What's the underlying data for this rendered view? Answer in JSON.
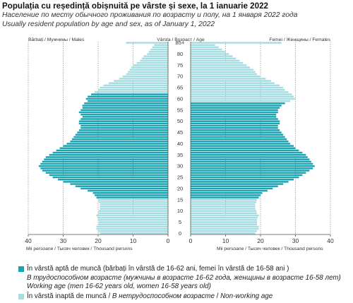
{
  "header": {
    "title": "Populația cu reședință obișnuită pe vârste și sexe, la 1 ianuarie 2022",
    "subtitle_ru": "Население по месту обычного проживания по возрасту и полу, на 1 января 2022 года",
    "subtitle_en": "Usually resident population by age and sex, as of January 1, 2022"
  },
  "colors": {
    "working": "#1ba3b1",
    "nonworking": "#a6dde2",
    "grid": "#777777"
  },
  "chart_data": {
    "type": "bar",
    "orientation": "horizontal-pyramid",
    "units_label": "Mii persoane / Тысяч человек / Thousand persons",
    "age_axis_label": "Vârsta / Возраст / Age",
    "left_panel_label": "Bărbați / Мужчины / Males",
    "right_panel_label": "Femei / Женщины / Females",
    "xlim": [
      0,
      40
    ],
    "x_ticks": [
      0,
      10,
      20,
      30,
      40
    ],
    "age_ticks": [
      "85+",
      "80",
      "75",
      "70",
      "65",
      "60",
      "55",
      "50",
      "45",
      "40",
      "35",
      "30",
      "25",
      "20",
      "15",
      "10",
      "5",
      "0"
    ],
    "grid": true,
    "ages": [
      0,
      1,
      2,
      3,
      4,
      5,
      6,
      7,
      8,
      9,
      10,
      11,
      12,
      13,
      14,
      15,
      16,
      17,
      18,
      19,
      20,
      21,
      22,
      23,
      24,
      25,
      26,
      27,
      28,
      29,
      30,
      31,
      32,
      33,
      34,
      35,
      36,
      37,
      38,
      39,
      40,
      41,
      42,
      43,
      44,
      45,
      46,
      47,
      48,
      49,
      50,
      51,
      52,
      53,
      54,
      55,
      56,
      57,
      58,
      59,
      60,
      61,
      62,
      63,
      64,
      65,
      66,
      67,
      68,
      69,
      70,
      71,
      72,
      73,
      74,
      75,
      76,
      77,
      78,
      79,
      80,
      81,
      82,
      83,
      84,
      85
    ],
    "males": [
      19.5,
      20,
      20.5,
      20.5,
      20,
      19.8,
      20,
      20.2,
      20.5,
      20,
      19.8,
      19.5,
      19.5,
      19.5,
      19.8,
      20,
      20.5,
      21,
      21.5,
      23,
      25,
      26.5,
      28,
      30,
      31.5,
      33,
      34,
      35,
      36,
      36.5,
      37,
      36.5,
      36,
      35.5,
      35,
      34,
      33,
      32,
      31,
      30,
      29,
      28,
      27.5,
      27,
      26.5,
      26,
      25.5,
      25,
      25,
      25.5,
      25.5,
      25,
      24.5,
      25,
      25.5,
      25,
      24.5,
      24.5,
      24,
      23,
      23.5,
      23,
      22,
      21,
      20,
      19.5,
      18.5,
      17,
      15.5,
      14,
      13,
      12,
      11.5,
      11,
      10.5,
      10,
      9,
      8,
      7.5,
      7,
      6,
      5.5,
      5,
      4.5,
      4,
      12
    ],
    "females": [
      18.5,
      19,
      19.5,
      19.5,
      19,
      19,
      19,
      19.2,
      19.5,
      19,
      18.8,
      18.5,
      18.5,
      18.5,
      18.8,
      19,
      19.5,
      20,
      20.5,
      22,
      23.5,
      25,
      26.5,
      28,
      29.5,
      31,
      32,
      33,
      34,
      35,
      35.5,
      35,
      34.5,
      34,
      33.5,
      33,
      32,
      31,
      30,
      29.5,
      28.5,
      28,
      27.5,
      27,
      26.5,
      26,
      25.5,
      25,
      25,
      25.5,
      25.5,
      25,
      24.5,
      24.5,
      25,
      25,
      25.5,
      26,
      27,
      28.5,
      30,
      29.5,
      29,
      28,
      27,
      26.5,
      25.5,
      24,
      23,
      21.5,
      20,
      19,
      18.5,
      18,
      17,
      16,
      15,
      14,
      13,
      12,
      11,
      10,
      9,
      8,
      7,
      26
    ],
    "male_working_ages": [
      16,
      62
    ],
    "female_working_ages": [
      16,
      58
    ]
  },
  "legend": {
    "working_ro": "În vârstă aptă de muncă (bărbați în vârstă de 16-62 ani, femei în vârstă de 16-58 ani )",
    "working_ru": "В трудоспособном возрасте (мужчины в возрасте 16-62 года, женщины в возрасте 16-58 лет)",
    "working_en": "Working age (men 16-62 years old, women 16-58 years old)",
    "nonworking_ro": "În vârstă inaptă de muncă",
    "nonworking_ru": "В нетрудоспособном возрасте",
    "nonworking_en": "Non-working age"
  }
}
